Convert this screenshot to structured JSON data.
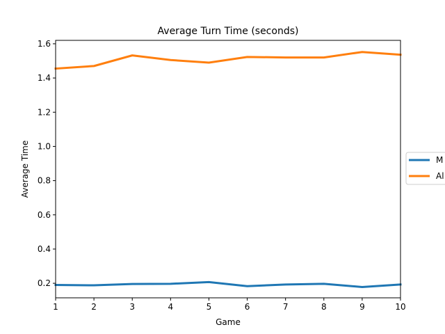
{
  "chart_data": {
    "type": "line",
    "title": "Average Turn Time (seconds)",
    "xlabel": "Game",
    "ylabel": "Average Time",
    "x": [
      1,
      2,
      3,
      4,
      5,
      6,
      7,
      8,
      9,
      10
    ],
    "xlim": [
      1,
      10
    ],
    "ylim": [
      0.115,
      1.62
    ],
    "xticks": [
      "1",
      "2",
      "3",
      "4",
      "5",
      "6",
      "7",
      "8",
      "9",
      "10"
    ],
    "yticks": [
      "0.2",
      "0.4",
      "0.6",
      "0.8",
      "1.0",
      "1.2",
      "1.4",
      "1.6"
    ],
    "grid": false,
    "legend_position": "right, outside (clipped)",
    "series": [
      {
        "name": "M",
        "color": "#1f77b4",
        "values": [
          0.19,
          0.188,
          0.196,
          0.197,
          0.207,
          0.183,
          0.193,
          0.197,
          0.178,
          0.193
        ]
      },
      {
        "name": "Al",
        "color": "#ff7f0e",
        "values": [
          1.455,
          1.47,
          1.532,
          1.505,
          1.49,
          1.523,
          1.52,
          1.52,
          1.552,
          1.536
        ]
      }
    ]
  }
}
